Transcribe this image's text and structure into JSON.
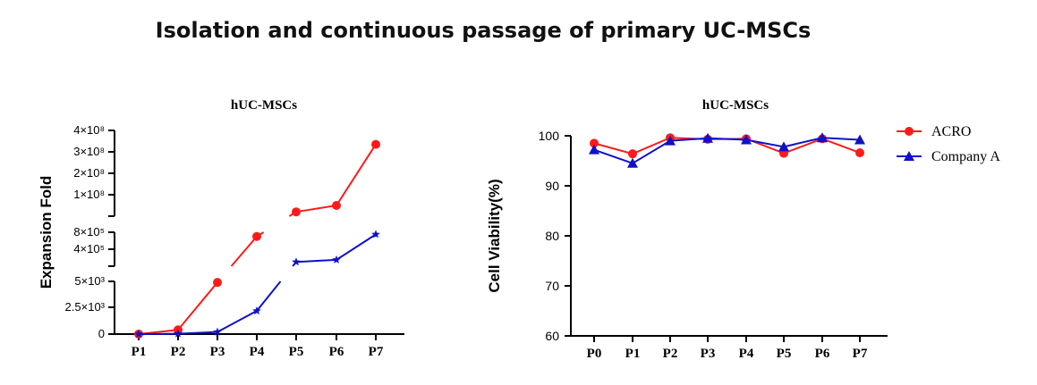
{
  "title": "Isolation and continuous passage of primary UC-MSCs",
  "colors": {
    "acro": "#ff1a1a",
    "company_a": "#1010c8",
    "axis": "#000000"
  },
  "chart_data": [
    {
      "type": "line",
      "title": "hUC-MSCs",
      "ylabel": "Expansion Fold",
      "xlabel": "",
      "categories": [
        "P1",
        "P2",
        "P3",
        "P4",
        "P5",
        "P6",
        "P7"
      ],
      "y_scale": "broken",
      "y_segments": [
        {
          "range": [
            0,
            5000
          ],
          "ticks": [
            "0",
            "2.5×10³",
            "5×10³"
          ]
        },
        {
          "range": [
            0,
            800000
          ],
          "ticks": [
            "4×10⁵",
            "8×10⁵"
          ]
        },
        {
          "range": [
            0,
            400000000
          ],
          "ticks": [
            "1×10⁸",
            "2×10⁸",
            "3×10⁸",
            "4×10⁸"
          ]
        }
      ],
      "series": [
        {
          "name": "ACRO",
          "marker": "circle",
          "values": [
            1,
            400,
            4900,
            700000,
            20000000,
            50000000,
            335000000
          ]
        },
        {
          "name": "Company A",
          "marker": "star",
          "values": [
            1,
            30,
            200,
            2200,
            100000,
            150000,
            750000
          ]
        }
      ]
    },
    {
      "type": "line",
      "title": "hUC-MSCs",
      "ylabel": "Cell Viability(%)",
      "xlabel": "",
      "categories": [
        "P0",
        "P1",
        "P2",
        "P3",
        "P4",
        "P5",
        "P6",
        "P7"
      ],
      "ylim": [
        60,
        100
      ],
      "yticks": [
        60,
        70,
        80,
        90,
        100
      ],
      "legend": "right",
      "series": [
        {
          "name": "ACRO",
          "marker": "circle",
          "values": [
            98.5,
            96.4,
            99.6,
            99.3,
            99.4,
            96.5,
            99.4,
            96.6
          ]
        },
        {
          "name": "Company A",
          "marker": "triangle",
          "values": [
            97.2,
            94.5,
            99.0,
            99.5,
            99.2,
            97.8,
            99.6,
            99.2
          ]
        }
      ]
    }
  ]
}
